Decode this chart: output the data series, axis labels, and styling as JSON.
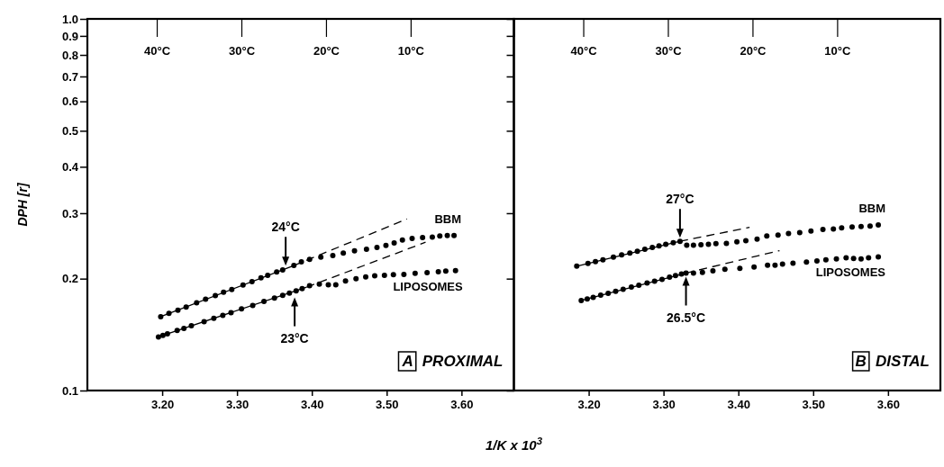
{
  "chart_data": [
    {
      "type": "scatter",
      "xlabel": "1/K x 10$^{3}$",
      "ylabel": "DPH [r]",
      "log": "y",
      "grid": false,
      "legend": false,
      "xlim": [
        3.1,
        3.67
      ],
      "xticks": [
        {
          "value": 3.2,
          "label": "3.20"
        },
        {
          "value": 3.3,
          "label": "3.30"
        },
        {
          "value": 3.4,
          "label": "3.40"
        },
        {
          "value": 3.5,
          "label": "3.50"
        },
        {
          "value": 3.6,
          "label": "3.60"
        }
      ],
      "x2lim": [
        48.2,
        -2.2
      ],
      "x2ticks": [
        {
          "value": 40,
          "label": "40°C"
        },
        {
          "value": 30,
          "label": "30°C"
        },
        {
          "value": 20,
          "label": "20°C"
        },
        {
          "value": 10,
          "label": "10°C"
        }
      ],
      "ylim": [
        0.1,
        1.0
      ],
      "yticks": [
        0.1,
        0.2,
        0.3,
        0.4,
        0.5,
        0.6,
        0.7,
        0.8,
        0.9,
        {
          "value": 1.0,
          "label": "1.0"
        }
      ],
      "series": [
        {
          "name": "BBM",
          "type": "scatter",
          "marker": "circle",
          "color": "#000000",
          "x": [
            3.198,
            3.209,
            3.221,
            3.232,
            3.246,
            3.258,
            3.271,
            3.282,
            3.293,
            3.308,
            3.32,
            3.332,
            3.341,
            3.353,
            3.361,
            3.376,
            3.386,
            3.397,
            3.412,
            3.428,
            3.442,
            3.457,
            3.473,
            3.487,
            3.499,
            3.51,
            3.521,
            3.534,
            3.548,
            3.561,
            3.571,
            3.581,
            3.59
          ],
          "values": [
            0.158,
            0.1614,
            0.1645,
            0.1677,
            0.1723,
            0.176,
            0.1801,
            0.1839,
            0.1871,
            0.1922,
            0.1963,
            0.2009,
            0.204,
            0.2084,
            0.2112,
            0.217,
            0.2221,
            0.2255,
            0.2286,
            0.2308,
            0.2344,
            0.2375,
            0.2398,
            0.2426,
            0.2458,
            0.2496,
            0.254,
            0.2564,
            0.2579,
            0.2589,
            0.2604,
            0.2614,
            0.2614
          ]
        },
        {
          "name": "LIPOSOMES",
          "type": "scatter",
          "marker": "circle",
          "color": "#000000",
          "x": [
            3.195,
            3.201,
            3.207,
            3.22,
            3.229,
            3.239,
            3.256,
            3.269,
            3.281,
            3.292,
            3.306,
            3.321,
            3.336,
            3.35,
            3.361,
            3.37,
            3.379,
            3.387,
            3.397,
            3.41,
            3.422,
            3.432,
            3.445,
            3.459,
            3.472,
            3.484,
            3.497,
            3.509,
            3.523,
            3.538,
            3.554,
            3.569,
            3.579,
            3.592
          ],
          "values": [
            0.1394,
            0.1408,
            0.1421,
            0.1451,
            0.1469,
            0.1494,
            0.1532,
            0.1565,
            0.1592,
            0.162,
            0.1658,
            0.1693,
            0.1736,
            0.1773,
            0.1804,
            0.1829,
            0.1854,
            0.1879,
            0.1915,
            0.1934,
            0.1926,
            0.1926,
            0.1971,
            0.1998,
            0.2021,
            0.2037,
            0.204,
            0.2049,
            0.2053,
            0.2068,
            0.2076,
            0.2088,
            0.2097,
            0.2101
          ]
        },
        {
          "type": "line",
          "marker": "none",
          "line_style": "solid",
          "color": "#000000",
          "x": [
            3.198,
            3.376
          ],
          "values": [
            0.158,
            0.217
          ]
        },
        {
          "type": "line",
          "marker": "none",
          "line_style": "dashed",
          "color": "#000000",
          "x": [
            3.376,
            3.527
          ],
          "values": [
            0.217,
            0.2894
          ]
        },
        {
          "type": "line",
          "marker": "none",
          "line_style": "solid",
          "color": "#000000",
          "x": [
            3.195,
            3.393
          ],
          "values": [
            0.1394,
            0.1897
          ]
        },
        {
          "type": "line",
          "marker": "none",
          "line_style": "dashed",
          "color": "#000000",
          "x": [
            3.393,
            3.552
          ],
          "values": [
            0.1897,
            0.2506
          ]
        }
      ],
      "annotations": [
        {
          "text": "24°C",
          "x": 3.365,
          "y": 0.212
        },
        {
          "text": "23°C",
          "x": 3.377,
          "y": 0.182
        },
        "A",
        "PROXIMAL"
      ]
    },
    {
      "type": "scatter",
      "log": "y",
      "grid": false,
      "legend": false,
      "tick_labels": "x",
      "xlim": [
        3.1,
        3.67
      ],
      "xticks": [
        {
          "value": 3.2,
          "label": "3.20"
        },
        {
          "value": 3.3,
          "label": "3.30"
        },
        {
          "value": 3.4,
          "label": "3.40"
        },
        {
          "value": 3.5,
          "label": "3.50"
        },
        {
          "value": 3.6,
          "label": "3.60"
        }
      ],
      "x2lim": [
        48.2,
        -2.2
      ],
      "x2ticks": [
        {
          "value": 40,
          "label": "40°C"
        },
        {
          "value": 30,
          "label": "30°C"
        },
        {
          "value": 20,
          "label": "20°C"
        },
        {
          "value": 10,
          "label": "10°C"
        }
      ],
      "ylim": [
        0.1,
        1.0
      ],
      "yticks": [
        0.1,
        0.2,
        0.3,
        0.4,
        0.5,
        0.6,
        0.7,
        0.8,
        0.9,
        1
      ],
      "series": [
        {
          "name": "BBM",
          "type": "scatter",
          "marker": "circle",
          "color": "#000000",
          "x": [
            3.184,
            3.199,
            3.209,
            3.219,
            3.233,
            3.244,
            3.255,
            3.265,
            3.275,
            3.285,
            3.294,
            3.303,
            3.313,
            3.322,
            3.331,
            3.34,
            3.35,
            3.36,
            3.37,
            3.384,
            3.398,
            3.41,
            3.425,
            3.438,
            3.453,
            3.467,
            3.482,
            3.497,
            3.513,
            3.527,
            3.538,
            3.552,
            3.564,
            3.576,
            3.587
          ],
          "values": [
            0.2161,
            0.2199,
            0.2224,
            0.2246,
            0.2285,
            0.2316,
            0.2343,
            0.237,
            0.2398,
            0.2426,
            0.245,
            0.2473,
            0.2497,
            0.2521,
            0.2459,
            0.2459,
            0.2468,
            0.2473,
            0.2483,
            0.2487,
            0.2512,
            0.2531,
            0.2556,
            0.2604,
            0.2619,
            0.2645,
            0.266,
            0.2686,
            0.2712,
            0.2722,
            0.2738,
            0.2754,
            0.2764,
            0.277,
            0.2791
          ]
        },
        {
          "name": "LIPOSOMES",
          "type": "scatter",
          "marker": "circle",
          "color": "#000000",
          "x": [
            3.19,
            3.198,
            3.206,
            3.216,
            3.226,
            3.236,
            3.246,
            3.257,
            3.267,
            3.278,
            3.288,
            3.298,
            3.308,
            3.316,
            3.324,
            3.33,
            3.34,
            3.352,
            3.366,
            3.382,
            3.402,
            3.421,
            3.439,
            3.449,
            3.459,
            3.473,
            3.491,
            3.505,
            3.517,
            3.531,
            3.544,
            3.554,
            3.564,
            3.574,
            3.587
          ],
          "values": [
            0.1747,
            0.1764,
            0.1781,
            0.1805,
            0.1826,
            0.1848,
            0.1873,
            0.1898,
            0.192,
            0.1947,
            0.1969,
            0.1992,
            0.2019,
            0.2039,
            0.2058,
            0.207,
            0.207,
            0.2078,
            0.2099,
            0.2119,
            0.2131,
            0.2148,
            0.2173,
            0.2173,
            0.2189,
            0.2202,
            0.2215,
            0.2232,
            0.2246,
            0.2259,
            0.2276,
            0.2267,
            0.2259,
            0.2276,
            0.2289
          ]
        },
        {
          "type": "line",
          "marker": "none",
          "line_style": "solid",
          "color": "#000000",
          "x": [
            3.184,
            3.322
          ],
          "values": [
            0.2161,
            0.2521
          ]
        },
        {
          "type": "line",
          "marker": "none",
          "line_style": "dashed",
          "color": "#000000",
          "x": [
            3.322,
            3.415
          ],
          "values": [
            0.2521,
            0.2749
          ]
        },
        {
          "type": "line",
          "marker": "none",
          "line_style": "solid",
          "color": "#000000",
          "x": [
            3.19,
            3.33
          ],
          "values": [
            0.1747,
            0.207
          ]
        },
        {
          "type": "line",
          "marker": "none",
          "line_style": "dashed",
          "color": "#000000",
          "x": [
            3.33,
            3.455
          ],
          "values": [
            0.207,
            0.2379
          ]
        }
      ],
      "annotations": [
        {
          "text": "27°C",
          "x": 3.322,
          "y": 0.252
        },
        {
          "text": "26.5°C",
          "x": 3.33,
          "y": 0.207
        },
        "B",
        "DISTAL"
      ]
    }
  ]
}
